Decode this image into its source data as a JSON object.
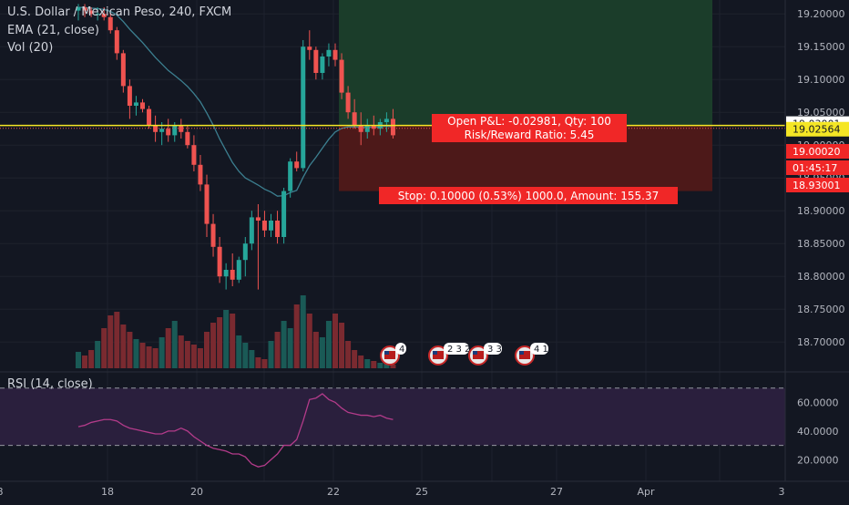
{
  "header": {
    "symbol_line": "U.S. Dollar / Mexican Peso, 240, FXCM",
    "ema_label": "EMA (21, close)",
    "vol_label": "Vol (20)"
  },
  "rsi_panel": {
    "label": "RSI (14, close)"
  },
  "colors": {
    "background": "#131722",
    "up": "#26a69a",
    "down": "#ef5350",
    "target_zone": "#1b3d2a",
    "stop_zone": "#4d1919",
    "position_line": "#f5e625",
    "rsi_line": "#b33b8a",
    "rsi_band": "#2a1f3d",
    "ema_line": "#3c7f90",
    "label_red": "#f02727"
  },
  "position_tool": {
    "pnl_label": "Open P&L: -0.02981, Qty: 100",
    "rr_label": "Risk/Reward Ratio: 5.45",
    "stop_label": "Stop: 0.10000 (0.53%) 1000.0, Amount: 155.37"
  },
  "price_axis": {
    "last_price_badge": "19.02564",
    "entry_price_badge": "19.03001",
    "stop_price_badge": "18.93001",
    "red_badge_price": "19.00020",
    "countdown_badge": "01:45:17"
  },
  "event_icons": [
    {
      "icon": "us-flag-icon",
      "count": "4"
    },
    {
      "icon": "us-flag-icon",
      "count": "2 3 2"
    },
    {
      "icon": "us-flag-icon",
      "count": "3 3"
    },
    {
      "icon": "us-flag-icon",
      "count": "4 1"
    }
  ],
  "chart_data": [
    {
      "type": "candlestick",
      "title": "U.S. Dollar / Mexican Peso, 240, FXCM",
      "ylim": [
        18.66,
        19.21
      ],
      "y_ticks": [
        "19.20000",
        "19.15000",
        "19.10000",
        "19.05000",
        "19.00000",
        "18.95000",
        "18.90000",
        "18.85000",
        "18.80000",
        "18.75000",
        "18.70000"
      ],
      "x_ticks": [
        "18",
        "20",
        "22",
        "25",
        "27",
        "Apr",
        "3",
        "8"
      ],
      "candles": [
        [
          19.205,
          19.215,
          19.19,
          19.21
        ],
        [
          19.21,
          19.215,
          19.195,
          19.205
        ],
        [
          19.205,
          19.21,
          19.195,
          19.2
        ],
        [
          19.2,
          19.21,
          19.19,
          19.2
        ],
        [
          19.2,
          19.21,
          19.19,
          19.195
        ],
        [
          19.195,
          19.2,
          19.17,
          19.175
        ],
        [
          19.175,
          19.18,
          19.13,
          19.14
        ],
        [
          19.14,
          19.145,
          19.08,
          19.09
        ],
        [
          19.09,
          19.1,
          19.04,
          19.06
        ],
        [
          19.06,
          19.075,
          19.045,
          19.065
        ],
        [
          19.065,
          19.07,
          19.05,
          19.055
        ],
        [
          19.055,
          19.06,
          19.025,
          19.03
        ],
        [
          19.03,
          19.045,
          19.005,
          19.02
        ],
        [
          19.02,
          19.035,
          19.0,
          19.025
        ],
        [
          19.025,
          19.04,
          19.005,
          19.015
        ],
        [
          19.015,
          19.035,
          19.005,
          19.03
        ],
        [
          19.03,
          19.04,
          19.01,
          19.02
        ],
        [
          19.02,
          19.03,
          18.995,
          19.0
        ],
        [
          19.0,
          19.015,
          18.96,
          18.97
        ],
        [
          18.97,
          18.985,
          18.93,
          18.94
        ],
        [
          18.94,
          18.955,
          18.86,
          18.88
        ],
        [
          18.88,
          18.895,
          18.83,
          18.845
        ],
        [
          18.845,
          18.86,
          18.79,
          18.8
        ],
        [
          18.8,
          18.82,
          18.78,
          18.81
        ],
        [
          18.81,
          18.835,
          18.785,
          18.795
        ],
        [
          18.795,
          18.83,
          18.79,
          18.825
        ],
        [
          18.825,
          18.86,
          18.8,
          18.85
        ],
        [
          18.85,
          18.9,
          18.84,
          18.89
        ],
        [
          18.89,
          18.91,
          18.78,
          18.885
        ],
        [
          18.885,
          18.9,
          18.86,
          18.87
        ],
        [
          18.87,
          18.895,
          18.86,
          18.885
        ],
        [
          18.885,
          18.9,
          18.85,
          18.86
        ],
        [
          18.86,
          18.935,
          18.85,
          18.93
        ],
        [
          18.93,
          18.98,
          18.92,
          18.975
        ],
        [
          18.975,
          18.99,
          18.96,
          18.965
        ],
        [
          18.965,
          19.16,
          18.96,
          19.15
        ],
        [
          19.15,
          19.175,
          19.13,
          19.145
        ],
        [
          19.145,
          19.15,
          19.1,
          19.11
        ],
        [
          19.11,
          19.14,
          19.1,
          19.135
        ],
        [
          19.135,
          19.155,
          19.12,
          19.145
        ],
        [
          19.145,
          19.155,
          19.12,
          19.13
        ],
        [
          19.13,
          19.14,
          19.07,
          19.08
        ],
        [
          19.08,
          19.09,
          19.04,
          19.05
        ],
        [
          19.05,
          19.07,
          19.025,
          19.03
        ],
        [
          19.03,
          19.05,
          19.0,
          19.02
        ],
        [
          19.02,
          19.04,
          19.01,
          19.03
        ],
        [
          19.03,
          19.045,
          19.015,
          19.025
        ],
        [
          19.025,
          19.04,
          19.015,
          19.035
        ],
        [
          19.035,
          19.05,
          19.02,
          19.04
        ],
        [
          19.04,
          19.055,
          19.01,
          19.015
        ]
      ]
    },
    {
      "type": "bar",
      "title": "Vol (20)",
      "values": [
        18,
        14,
        20,
        30,
        44,
        58,
        62,
        48,
        40,
        32,
        28,
        24,
        22,
        34,
        44,
        52,
        36,
        30,
        26,
        22,
        40,
        50,
        56,
        64,
        60,
        36,
        28,
        20,
        12,
        10,
        30,
        40,
        52,
        44,
        70,
        80,
        60,
        40,
        34,
        52,
        60,
        50,
        30,
        20,
        14,
        10,
        8,
        6,
        5,
        4
      ]
    },
    {
      "type": "line",
      "title": "RSI (14, close)",
      "y_ticks": [
        "60.0000",
        "40.0000",
        "20.0000"
      ],
      "ylim": [
        10,
        80
      ],
      "bands": [
        30,
        70
      ],
      "values": [
        43,
        44,
        46,
        47,
        48,
        48,
        47,
        44,
        42,
        41,
        40,
        39,
        38,
        38,
        40,
        40,
        42,
        40,
        36,
        33,
        30,
        28,
        27,
        26,
        24,
        24,
        22,
        17,
        15,
        16,
        20,
        24,
        30,
        30,
        34,
        47,
        62,
        63,
        66,
        62,
        60,
        56,
        53,
        52,
        51,
        51,
        50,
        51,
        49,
        48
      ]
    }
  ]
}
